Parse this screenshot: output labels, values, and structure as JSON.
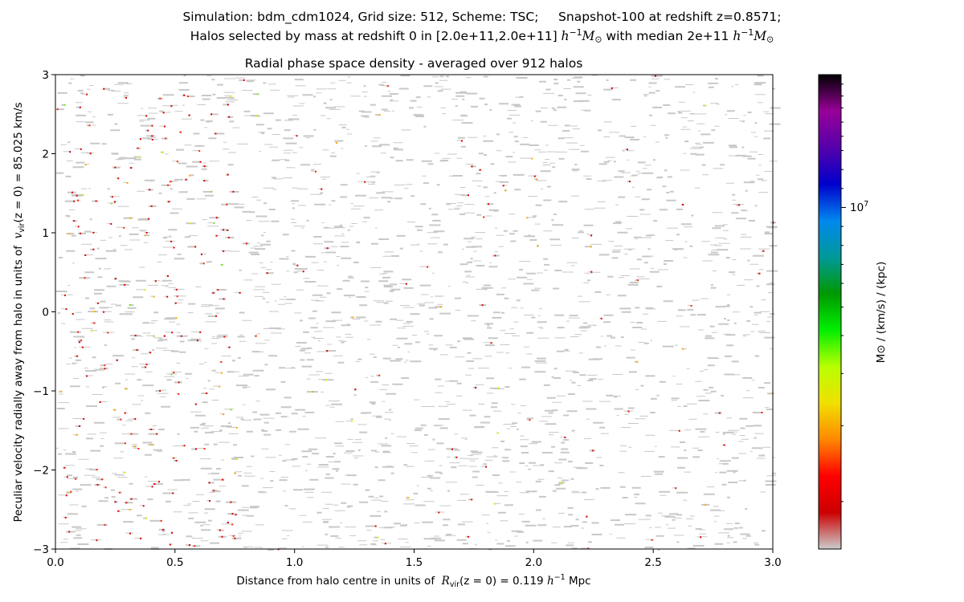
{
  "figure": {
    "suptitle_line1": "Simulation: bdm_cdm1024, Grid size: 512, Scheme: TSC;     Snapshot-100 at redshift z=0.8571;",
    "suptitle_line2_prefix": "Halos selected by mass at redshift 0 in [2.0e+11,2.0e+11] ",
    "suptitle_line2_middle": " with median 2e+11 ",
    "mass_unit_h": "h",
    "mass_unit_exp": "−1",
    "mass_unit_M": "M",
    "mass_unit_sub": "⊙"
  },
  "chart_data": {
    "type": "heatmap",
    "title": "Radial phase space density - averaged over 912 halos",
    "xlabel_prefix": "Distance from halo centre in units of  ",
    "xlabel_var": "R",
    "xlabel_sub": "vir",
    "xlabel_mid": "(z = 0) = 0.119 ",
    "xlabel_unit_h": "h",
    "xlabel_unit_exp": "−1",
    "xlabel_unit_tail": " Mpc",
    "ylabel_prefix": "Peculiar velocity radially away from halo in units of  ",
    "ylabel_var": "v",
    "ylabel_sub": "vir",
    "ylabel_mid": "(z = 0) = 85.025 km/s",
    "xlim": [
      0.0,
      3.0
    ],
    "ylim": [
      -3,
      3
    ],
    "x_ticks": [
      0.0,
      0.5,
      1.0,
      1.5,
      2.0,
      2.5,
      3.0
    ],
    "x_tick_labels": [
      "0.0",
      "0.5",
      "1.0",
      "1.5",
      "2.0",
      "2.5",
      "3.0"
    ],
    "y_ticks": [
      -3,
      -2,
      -1,
      0,
      1,
      2,
      3
    ],
    "y_tick_labels": [
      "−3",
      "−2",
      "−1",
      "0",
      "1",
      "2",
      "3"
    ],
    "grid": false,
    "colorbar": {
      "label": "M⊙ / (km/s) / (kpc)",
      "major_tick_base": "10",
      "major_tick_exp": "7",
      "major_tick_fraction": 0.72,
      "colors": [
        "#cccccc",
        "#cc0000",
        "#ff0000",
        "#ff8800",
        "#f0e000",
        "#b8ff00",
        "#00ee00",
        "#009900",
        "#009999",
        "#0088ee",
        "#0000cc",
        "#5500aa",
        "#990099",
        "#000000"
      ]
    },
    "density": {
      "background": "#ffffff",
      "dominant_color": "#c8c8c8",
      "highlight_colors": [
        "#dd0000",
        "#ff2200",
        "#ffaa00",
        "#e8e800",
        "#88dd22"
      ],
      "inner_region_x": 0.75
    }
  }
}
